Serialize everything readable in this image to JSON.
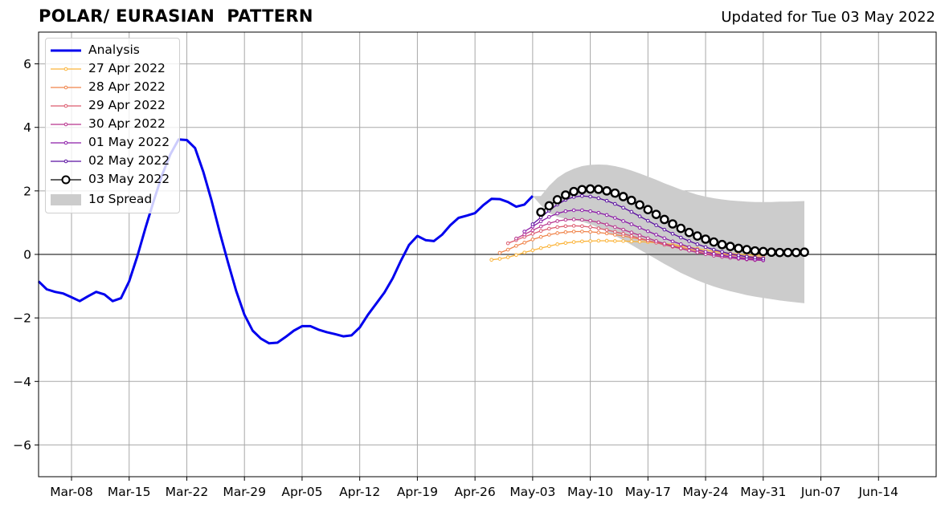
{
  "header": {
    "title": "POLAR/ EURASIAN  PATTERN",
    "updated": "Updated for Tue 03 May 2022"
  },
  "legend": {
    "analysis": "Analysis",
    "f1": "27 Apr 2022",
    "f2": "28 Apr 2022",
    "f3": "29 Apr 2022",
    "f4": "30 Apr 2022",
    "f5": "01 May 2022",
    "f6": "02 May 2022",
    "f7": "03 May 2022",
    "spread": "1σ Spread"
  },
  "colors": {
    "analysis": "#0000ee",
    "f27apr": "#fbb43a",
    "f28apr": "#f0844a",
    "f29apr": "#dc5a6e",
    "f30apr": "#b8348e",
    "f01may": "#8c1ca8",
    "f02may": "#5a10a0",
    "f03may": "#000000",
    "spread": "#cccccc",
    "grid": "#a8a8a8"
  },
  "chart_data": {
    "type": "line",
    "title": "POLAR/ EURASIAN  PATTERN",
    "xlabel": "",
    "ylabel": "",
    "x_axis": {
      "type": "date",
      "range": [
        "2022-03-04",
        "2022-06-21"
      ],
      "tick_labels": [
        "Mar-08",
        "Mar-15",
        "Mar-22",
        "Mar-29",
        "Apr-05",
        "Apr-12",
        "Apr-19",
        "Apr-26",
        "May-03",
        "May-10",
        "May-17",
        "May-24",
        "May-31",
        "Jun-07",
        "Jun-14"
      ],
      "tick_dates": [
        "2022-03-08",
        "2022-03-15",
        "2022-03-22",
        "2022-03-29",
        "2022-04-05",
        "2022-04-12",
        "2022-04-19",
        "2022-04-26",
        "2022-05-03",
        "2022-05-10",
        "2022-05-17",
        "2022-05-24",
        "2022-05-31",
        "2022-06-07",
        "2022-06-14"
      ]
    },
    "y_axis": {
      "range": [
        -7,
        7
      ],
      "ticks": [
        6,
        4,
        2,
        0,
        -2,
        -4,
        -6
      ],
      "tick_labels": [
        "6",
        "4",
        "2",
        "0",
        "−2",
        "−4",
        "−6"
      ]
    },
    "grid": true,
    "legend_position": "top-left",
    "series": [
      {
        "name": "Analysis",
        "start": "2022-03-04",
        "values": [
          -0.85,
          -1.1,
          -1.18,
          -1.23,
          -1.35,
          -1.47,
          -1.32,
          -1.18,
          -1.26,
          -1.47,
          -1.38,
          -0.85,
          -0.05,
          0.85,
          1.7,
          2.5,
          3.15,
          3.62,
          3.6,
          3.35,
          2.6,
          1.7,
          0.7,
          -0.25,
          -1.15,
          -1.9,
          -2.4,
          -2.65,
          -2.8,
          -2.78,
          -2.6,
          -2.4,
          -2.26,
          -2.26,
          -2.37,
          -2.45,
          -2.51,
          -2.58,
          -2.55,
          -2.3,
          -1.9,
          -1.55,
          -1.2,
          -0.75,
          -0.2,
          0.3,
          0.58,
          0.45,
          0.42,
          0.62,
          0.92,
          1.15,
          1.22,
          1.3,
          1.55,
          1.75,
          1.74,
          1.65,
          1.5,
          1.57,
          1.84
        ]
      },
      {
        "name": "27 Apr 2022",
        "start": "2022-04-28",
        "values": [
          -0.17,
          -0.14,
          -0.09,
          -0.02,
          0.06,
          0.13,
          0.2,
          0.26,
          0.32,
          0.36,
          0.39,
          0.41,
          0.42,
          0.43,
          0.43,
          0.42,
          0.42,
          0.41,
          0.4,
          0.39,
          0.37,
          0.34,
          0.31,
          0.27,
          0.23,
          0.18,
          0.14,
          0.1,
          0.06,
          0.03,
          0.01,
          -0.01,
          -0.02,
          -0.03
        ]
      },
      {
        "name": "28 Apr 2022",
        "start": "2022-04-29",
        "values": [
          0.05,
          0.15,
          0.27,
          0.37,
          0.47,
          0.55,
          0.62,
          0.67,
          0.7,
          0.72,
          0.72,
          0.71,
          0.69,
          0.66,
          0.62,
          0.58,
          0.53,
          0.48,
          0.43,
          0.38,
          0.32,
          0.27,
          0.22,
          0.17,
          0.12,
          0.08,
          0.04,
          0.01,
          -0.02,
          -0.04,
          -0.06,
          -0.08,
          -0.09
        ]
      },
      {
        "name": "29 Apr 2022",
        "start": "2022-04-30",
        "values": [
          0.35,
          0.45,
          0.55,
          0.65,
          0.74,
          0.81,
          0.86,
          0.89,
          0.9,
          0.89,
          0.86,
          0.82,
          0.77,
          0.71,
          0.65,
          0.58,
          0.51,
          0.44,
          0.37,
          0.3,
          0.24,
          0.18,
          0.12,
          0.07,
          0.03,
          -0.01,
          -0.04,
          -0.07,
          -0.09,
          -0.11,
          -0.13,
          -0.14
        ]
      },
      {
        "name": "30 Apr 2022",
        "start": "2022-05-01",
        "values": [
          0.5,
          0.63,
          0.76,
          0.88,
          0.98,
          1.05,
          1.09,
          1.1,
          1.09,
          1.06,
          1.01,
          0.94,
          0.86,
          0.78,
          0.69,
          0.6,
          0.51,
          0.42,
          0.34,
          0.26,
          0.19,
          0.12,
          0.06,
          0.01,
          -0.04,
          -0.08,
          -0.11,
          -0.14,
          -0.16,
          -0.18,
          -0.19
        ]
      },
      {
        "name": "01 May 2022",
        "start": "2022-05-02",
        "values": [
          0.72,
          0.88,
          1.04,
          1.18,
          1.29,
          1.36,
          1.39,
          1.39,
          1.36,
          1.31,
          1.24,
          1.15,
          1.05,
          0.95,
          0.84,
          0.73,
          0.62,
          0.51,
          0.41,
          0.32,
          0.23,
          0.15,
          0.08,
          0.02,
          -0.03,
          -0.07,
          -0.11,
          -0.14,
          -0.16,
          -0.18
        ]
      },
      {
        "name": "02 May 2022",
        "start": "2022-05-03",
        "values": [
          0.95,
          1.17,
          1.38,
          1.57,
          1.72,
          1.81,
          1.84,
          1.82,
          1.77,
          1.69,
          1.59,
          1.47,
          1.34,
          1.2,
          1.06,
          0.92,
          0.78,
          0.65,
          0.53,
          0.42,
          0.32,
          0.23,
          0.15,
          0.08,
          0.02,
          -0.03,
          -0.07,
          -0.1,
          -0.13
        ]
      },
      {
        "name": "03 May 2022",
        "start": "2022-05-04",
        "values": [
          1.33,
          1.53,
          1.72,
          1.87,
          1.98,
          2.04,
          2.06,
          2.05,
          2.0,
          1.93,
          1.82,
          1.7,
          1.56,
          1.41,
          1.26,
          1.1,
          0.96,
          0.82,
          0.69,
          0.58,
          0.48,
          0.39,
          0.31,
          0.25,
          0.19,
          0.15,
          0.11,
          0.09,
          0.07,
          0.06,
          0.06,
          0.06,
          0.07
        ]
      }
    ],
    "spread": {
      "name": "1σ Spread",
      "start": "2022-05-03",
      "upper": [
        1.84,
        1.84,
        2.16,
        2.41,
        2.58,
        2.7,
        2.78,
        2.82,
        2.83,
        2.82,
        2.78,
        2.72,
        2.64,
        2.55,
        2.45,
        2.35,
        2.24,
        2.14,
        2.04,
        1.96,
        1.88,
        1.82,
        1.77,
        1.73,
        1.7,
        1.68,
        1.66,
        1.65,
        1.65,
        1.65,
        1.66,
        1.66,
        1.67,
        1.68
      ],
      "lower": [
        1.84,
        1.55,
        1.3,
        1.18,
        1.12,
        1.08,
        1.03,
        0.95,
        0.84,
        0.72,
        0.59,
        0.45,
        0.3,
        0.15,
        0.0,
        -0.15,
        -0.3,
        -0.44,
        -0.58,
        -0.7,
        -0.82,
        -0.92,
        -1.01,
        -1.09,
        -1.16,
        -1.22,
        -1.28,
        -1.33,
        -1.37,
        -1.41,
        -1.45,
        -1.48,
        -1.51,
        -1.54
      ]
    }
  }
}
